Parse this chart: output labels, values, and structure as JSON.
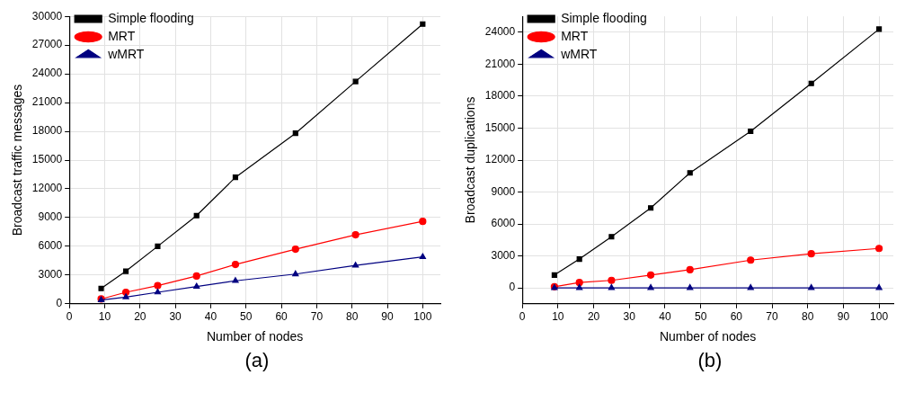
{
  "chart_data": [
    {
      "type": "line",
      "xlabel": "Number of nodes",
      "ylabel": "Broadcast traffic messages",
      "annotations": [
        "(a)"
      ],
      "x": [
        9,
        16,
        25,
        36,
        47,
        64,
        81,
        100
      ],
      "xlim": [
        0,
        105
      ],
      "xticks": [
        0,
        10,
        20,
        30,
        40,
        50,
        60,
        70,
        80,
        90,
        100
      ],
      "ylim": [
        0,
        30000
      ],
      "yticks": [
        0,
        3000,
        6000,
        9000,
        12000,
        15000,
        18000,
        21000,
        24000,
        27000,
        30000
      ],
      "grid": true,
      "legend": "top left",
      "series": [
        {
          "name": "Simple flooding",
          "color": "#000000",
          "marker": "square",
          "values": [
            1600,
            3400,
            6000,
            9200,
            13200,
            17800,
            23200,
            29200
          ]
        },
        {
          "name": "MRT",
          "color": "#ff0000",
          "marker": "circle",
          "values": [
            500,
            1200,
            1900,
            2900,
            4100,
            5700,
            7200,
            8600
          ]
        },
        {
          "name": "wMRT",
          "color": "#000080",
          "marker": "triangle",
          "values": [
            400,
            700,
            1200,
            1800,
            2400,
            3100,
            4000,
            4900
          ]
        }
      ]
    },
    {
      "type": "line",
      "xlabel": "Number of nodes",
      "ylabel": "Broadcast duplications",
      "annotations": [
        "(b)"
      ],
      "x": [
        9,
        16,
        25,
        36,
        47,
        64,
        81,
        100
      ],
      "xlim": [
        0,
        104
      ],
      "xticks": [
        0,
        10,
        20,
        30,
        40,
        50,
        60,
        70,
        80,
        90,
        100
      ],
      "ylim": [
        -1500,
        25500
      ],
      "yticks": [
        0,
        3000,
        6000,
        9000,
        12000,
        15000,
        18000,
        21000,
        24000
      ],
      "grid": true,
      "legend": "top left",
      "series": [
        {
          "name": "Simple flooding",
          "color": "#000000",
          "marker": "square",
          "values": [
            1200,
            2700,
            4800,
            7500,
            10800,
            14700,
            19200,
            24300
          ]
        },
        {
          "name": "MRT",
          "color": "#ff0000",
          "marker": "circle",
          "values": [
            100,
            500,
            700,
            1200,
            1700,
            2600,
            3200,
            3700
          ]
        },
        {
          "name": "wMRT",
          "color": "#000080",
          "marker": "triangle",
          "values": [
            0,
            0,
            0,
            0,
            0,
            0,
            0,
            0
          ]
        }
      ]
    }
  ]
}
